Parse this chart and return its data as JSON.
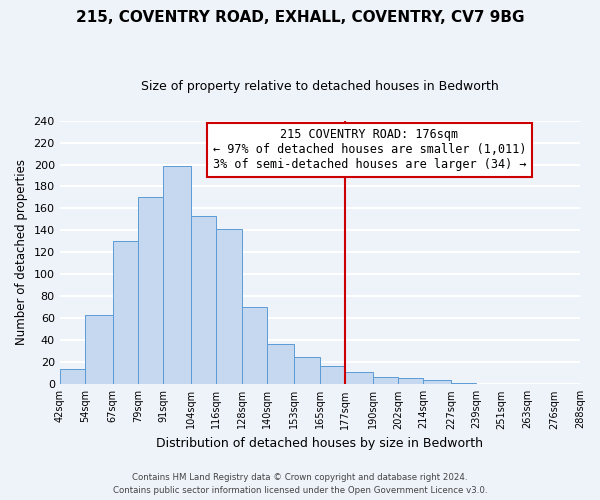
{
  "title": "215, COVENTRY ROAD, EXHALL, COVENTRY, CV7 9BG",
  "subtitle": "Size of property relative to detached houses in Bedworth",
  "xlabel": "Distribution of detached houses by size in Bedworth",
  "ylabel": "Number of detached properties",
  "bin_labels": [
    "42sqm",
    "54sqm",
    "67sqm",
    "79sqm",
    "91sqm",
    "104sqm",
    "116sqm",
    "128sqm",
    "140sqm",
    "153sqm",
    "165sqm",
    "177sqm",
    "190sqm",
    "202sqm",
    "214sqm",
    "227sqm",
    "239sqm",
    "251sqm",
    "263sqm",
    "276sqm",
    "288sqm"
  ],
  "bar_heights": [
    14,
    63,
    130,
    170,
    199,
    153,
    141,
    70,
    37,
    25,
    17,
    11,
    7,
    6,
    4,
    1,
    0,
    0,
    0,
    0
  ],
  "bar_color": "#c5d8f0",
  "bar_edge_color": "#5b9bd5",
  "vline_color": "#cc0000",
  "annotation_title": "215 COVENTRY ROAD: 176sqm",
  "annotation_line1": "← 97% of detached houses are smaller (1,011)",
  "annotation_line2": "3% of semi-detached houses are larger (34) →",
  "annotation_box_color": "#ffffff",
  "annotation_box_edge": "#cc0000",
  "ylim": [
    0,
    240
  ],
  "yticks": [
    0,
    20,
    40,
    60,
    80,
    100,
    120,
    140,
    160,
    180,
    200,
    220,
    240
  ],
  "footer1": "Contains HM Land Registry data © Crown copyright and database right 2024.",
  "footer2": "Contains public sector information licensed under the Open Government Licence v3.0.",
  "bg_color": "#eef2f9",
  "grid_color": "#ffffff",
  "bin_edges": [
    42,
    54,
    67,
    79,
    91,
    104,
    116,
    128,
    140,
    153,
    165,
    177,
    190,
    202,
    214,
    227,
    239,
    251,
    263,
    276,
    288
  ]
}
